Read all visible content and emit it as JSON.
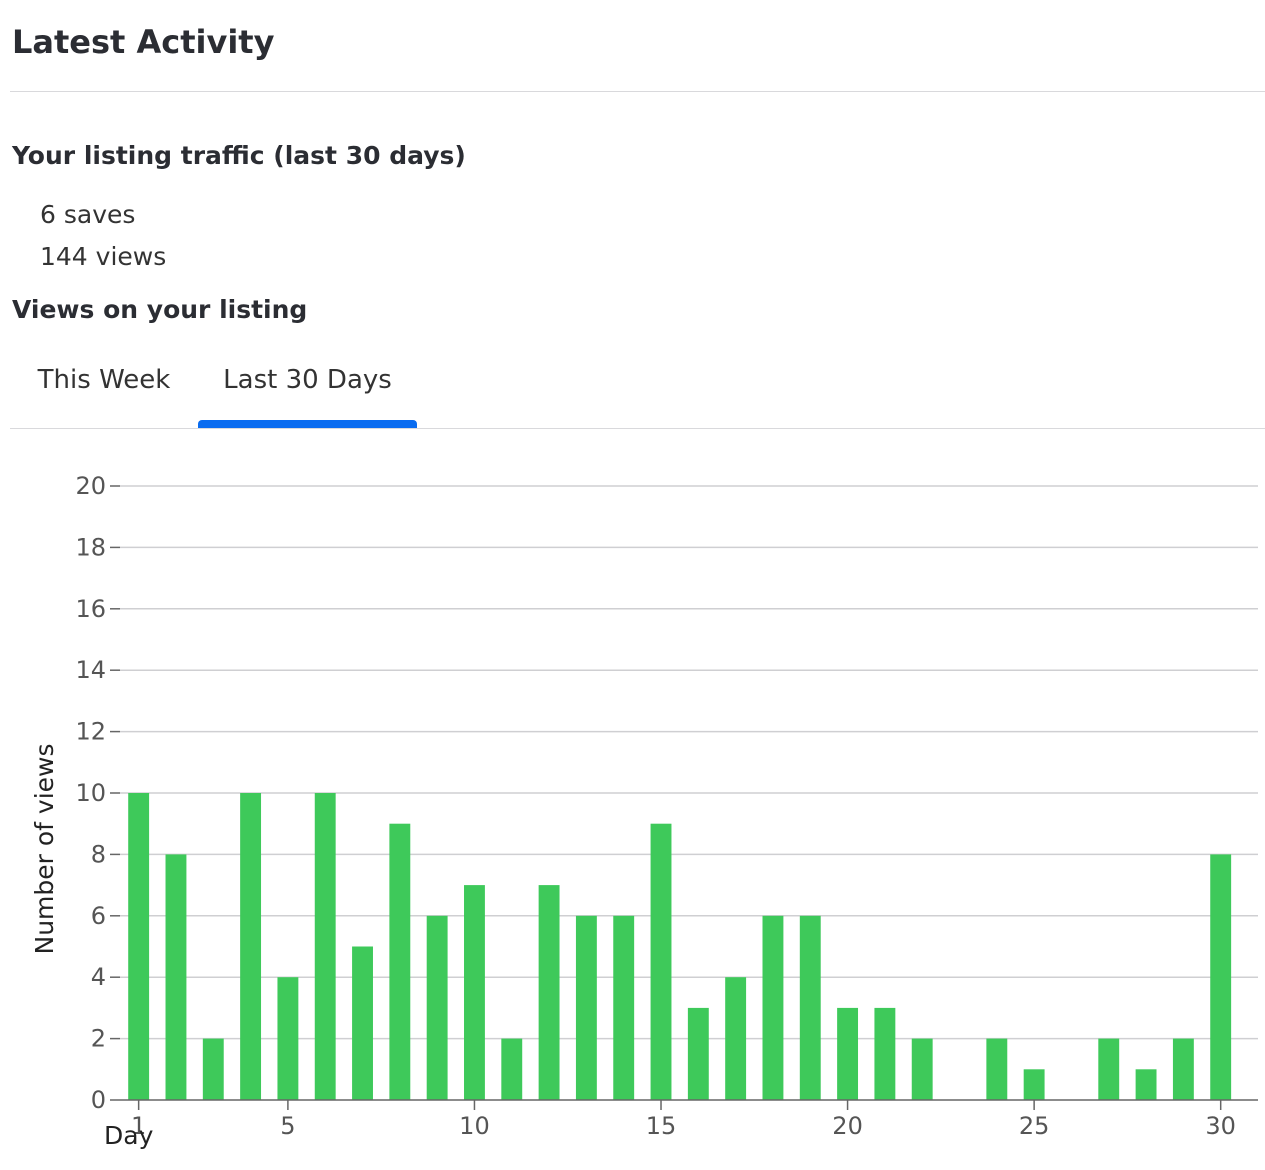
{
  "page": {
    "title": "Latest Activity"
  },
  "traffic": {
    "heading": "Your listing traffic (last 30 days)",
    "saves": "6 saves",
    "views": "144 views"
  },
  "views_section": {
    "heading": "Views on your listing",
    "tabs": [
      {
        "label": "This Week",
        "active": false
      },
      {
        "label": "Last 30 Days",
        "active": true
      }
    ]
  },
  "colors": {
    "bar": "#3ec95a",
    "accent": "#0a6cf0",
    "grid": "#cfcfd2"
  },
  "chart_data": {
    "type": "bar",
    "xlabel": "Day",
    "ylabel": "Number of views",
    "ylim": [
      0,
      20
    ],
    "xlim": [
      0.5,
      31
    ],
    "yticks": [
      0,
      2,
      4,
      6,
      8,
      10,
      12,
      14,
      16,
      18,
      20
    ],
    "xticks": [
      1,
      5,
      10,
      15,
      20,
      25,
      30
    ],
    "grid": true,
    "x": [
      1,
      2,
      3,
      4,
      5,
      6,
      7,
      8,
      9,
      10,
      11,
      12,
      13,
      14,
      15,
      16,
      17,
      18,
      19,
      20,
      21,
      22,
      23,
      24,
      25,
      26,
      27,
      28,
      29,
      30
    ],
    "values": [
      10,
      8,
      2,
      10,
      4,
      10,
      5,
      9,
      6,
      7,
      2,
      7,
      6,
      6,
      9,
      3,
      4,
      6,
      6,
      3,
      3,
      2,
      0,
      2,
      1,
      0,
      2,
      1,
      2,
      8
    ]
  }
}
